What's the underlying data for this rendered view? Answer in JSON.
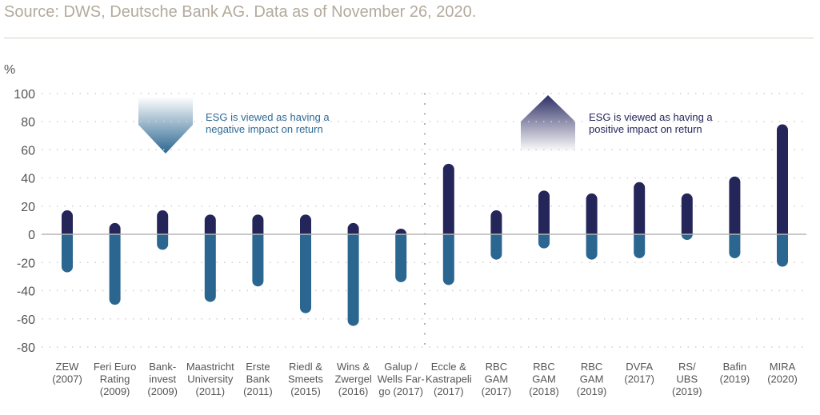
{
  "source": "Source: DWS, Deutsche Bank AG. Data as of November 26, 2020.",
  "chart_data": {
    "type": "bar",
    "ylabel": "%",
    "ylim": [
      -80,
      100
    ],
    "yticks": [
      100,
      80,
      60,
      40,
      20,
      0,
      -20,
      -40,
      -60,
      -80
    ],
    "grid": true,
    "categories": [
      [
        "ZEW",
        "(2007)"
      ],
      [
        "Feri Euro",
        "Rating",
        "(2009)"
      ],
      [
        "Bank-",
        "invest",
        "(2009)"
      ],
      [
        "Maastricht",
        "University",
        "(2011)"
      ],
      [
        "Erste",
        "Bank",
        "(2011)"
      ],
      [
        "Riedl &",
        "Smeets",
        "(2015)"
      ],
      [
        "Wins &",
        "Zwergel",
        "(2016)"
      ],
      [
        "Galup /",
        "Wells Far-",
        "go (2017)"
      ],
      [
        "Eccle &",
        "Kastrapeli",
        "(2017)"
      ],
      [
        "RBC",
        "GAM",
        "(2017)"
      ],
      [
        "RBC",
        "GAM",
        "(2018)"
      ],
      [
        "RBC",
        "GAM",
        "(2019)"
      ],
      [
        "DVFA",
        "(2017)"
      ],
      [
        "RS/",
        "UBS",
        "(2019)"
      ],
      [
        "Bafin",
        "(2019)"
      ],
      [
        "MIRA",
        "(2020)"
      ]
    ],
    "series": [
      {
        "values": [
          17,
          8,
          17,
          14,
          14,
          14,
          8,
          4,
          50,
          17,
          31,
          29,
          37,
          29,
          41,
          78
        ]
      },
      {
        "values": [
          -27,
          -50,
          -11,
          -48,
          -37,
          -56,
          -65,
          -34,
          -36,
          -18,
          -10,
          -18,
          -17,
          -4,
          -17,
          -23
        ]
      }
    ],
    "annotations": {
      "negative": [
        "ESG is viewed as having a",
        "negative impact on return"
      ],
      "positive": [
        "ESG is viewed as having a",
        "positive impact on return"
      ]
    },
    "colors": {
      "positive": "#24265a",
      "negative": "#2a6690",
      "negative_text": "#2d6a96",
      "positive_text": "#23265a",
      "axis_text": "#555555",
      "highlight_label": "#7d8fa6"
    }
  }
}
